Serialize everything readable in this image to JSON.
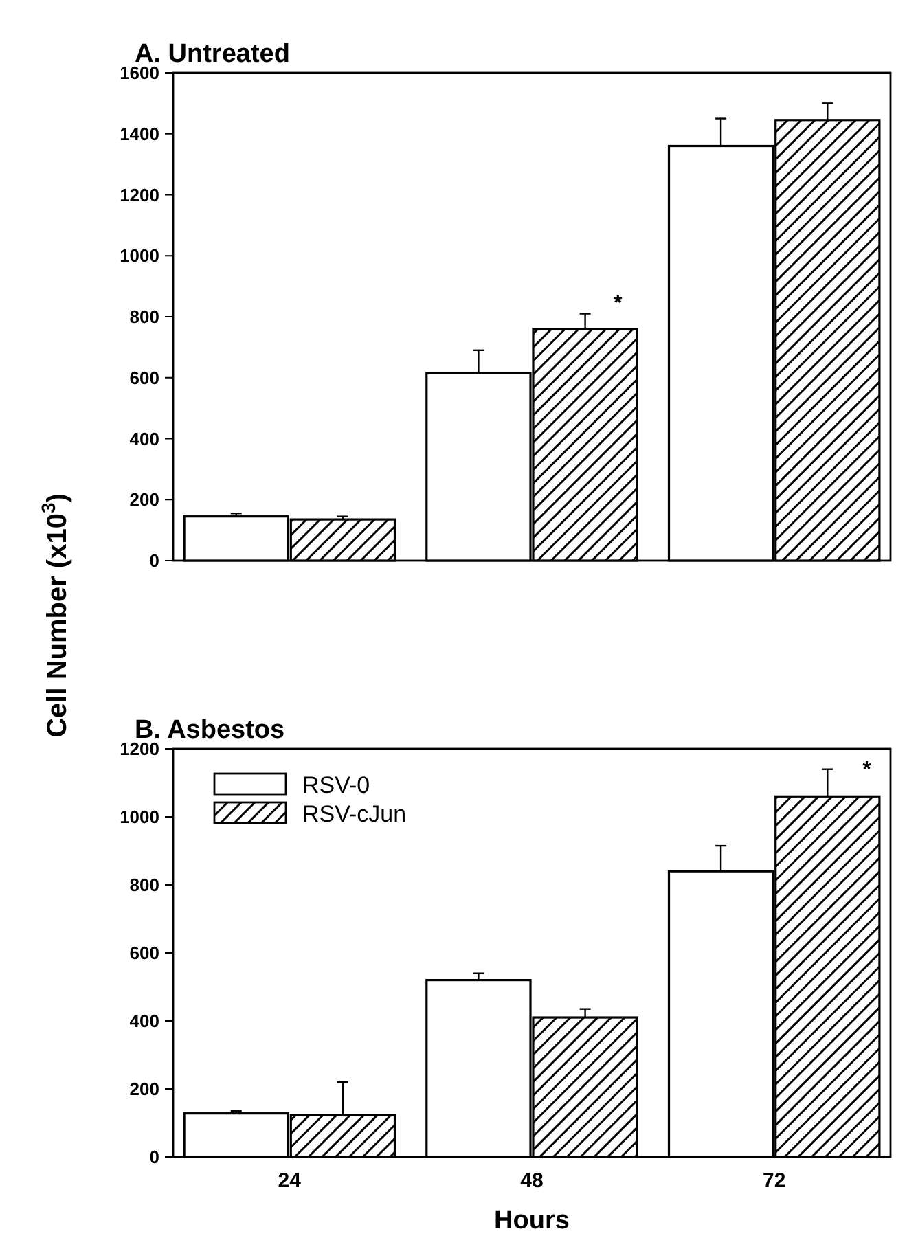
{
  "chart_data": [
    {
      "type": "bar",
      "title": "A.  Untreated",
      "ylabel": "Cell Number (x10$^{3}$)",
      "categories": [
        "24",
        "48",
        "72"
      ],
      "series": [
        {
          "color": "#ffffff",
          "values": [
            145,
            615,
            1360
          ],
          "errors": [
            [
              145,
              155
            ],
            [
              615,
              690
            ],
            [
              1360,
              1450
            ]
          ]
        },
        {
          "color": "#000000",
          "values": [
            135,
            760,
            1445
          ],
          "errors": [
            [
              135,
              145
            ],
            [
              760,
              810
            ],
            [
              1445,
              1500
            ]
          ]
        }
      ],
      "ylim": [
        0,
        1600
      ],
      "yticks": [
        0,
        200,
        400,
        600,
        800,
        1000,
        1200,
        1400,
        1600
      ],
      "tick_labels": "y",
      "legend": false,
      "annotations": [
        "*"
      ]
    },
    {
      "type": "bar",
      "title": "B.  Asbestos",
      "xlabel": "Hours",
      "categories": [
        "24",
        "48",
        "72"
      ],
      "series": [
        {
          "name": "RSV-0",
          "color": "#ffffff",
          "values": [
            128,
            520,
            840
          ],
          "errors": [
            [
              128,
              135
            ],
            [
              520,
              540
            ],
            [
              840,
              915
            ]
          ]
        },
        {
          "name": "RSV-cJun",
          "color": "#000000",
          "values": [
            124,
            410,
            1060
          ],
          "errors": [
            [
              124,
              220
            ],
            [
              410,
              435
            ],
            [
              1060,
              1140
            ]
          ]
        }
      ],
      "ylim": [
        0,
        1200
      ],
      "yticks": [
        0,
        200,
        400,
        600,
        800,
        1000,
        1200
      ],
      "legend": "top left",
      "annotations": [
        "*"
      ]
    }
  ]
}
